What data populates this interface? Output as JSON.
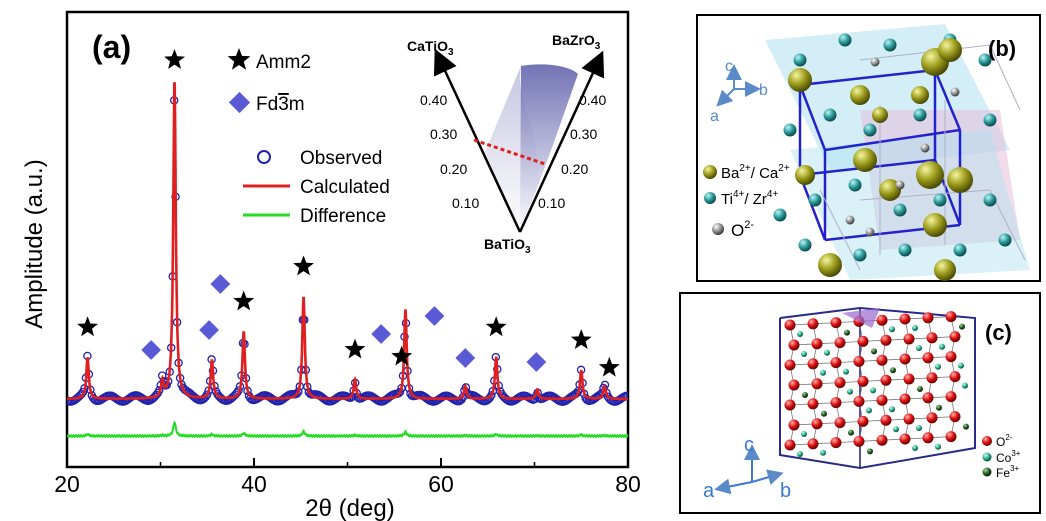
{
  "panel_a": {
    "label": "(a)",
    "legend": {
      "amm2": "Amm2",
      "fd3m_prefix": "Fd",
      "fd3m_bar": "3",
      "fd3m_suffix": "m",
      "observed": "Observed",
      "calculated": "Calculated",
      "difference": "Difference"
    },
    "inset": {
      "top_left": "CaTiO",
      "top_left_sub": "3",
      "top_right": "BaZrO",
      "top_right_sub": "3",
      "bottom": "BaTiO",
      "bottom_sub": "3",
      "left_ticks": [
        "0.40",
        "0.30",
        "0.20",
        "0.10"
      ],
      "right_ticks": [
        "0.40",
        "0.30",
        "0.20",
        "0.10"
      ]
    }
  },
  "chart_data": {
    "type": "line",
    "xlabel": "2θ (deg)",
    "ylabel": "Amplitude (a.u.)",
    "xlim": [
      20,
      80
    ],
    "x_ticks": [
      "20",
      "40",
      "60",
      "80"
    ],
    "series": [
      {
        "name": "Observed",
        "color": "#2222aa"
      },
      {
        "name": "Calculated",
        "color": "#e02020"
      },
      {
        "name": "Difference",
        "color": "#22dd22"
      }
    ],
    "peaks": [
      {
        "x": 22.2,
        "height": 0.13
      },
      {
        "x": 30.2,
        "height": 0.05
      },
      {
        "x": 31.5,
        "height": 1.0
      },
      {
        "x": 35.5,
        "height": 0.12
      },
      {
        "x": 38.9,
        "height": 0.21
      },
      {
        "x": 45.3,
        "height": 0.32
      },
      {
        "x": 50.8,
        "height": 0.06
      },
      {
        "x": 56.2,
        "height": 0.28
      },
      {
        "x": 62.6,
        "height": 0.04
      },
      {
        "x": 65.9,
        "height": 0.13
      },
      {
        "x": 70.3,
        "height": 0.03
      },
      {
        "x": 75.0,
        "height": 0.09
      },
      {
        "x": 77.5,
        "height": 0.04
      }
    ],
    "amm2_markers": [
      22.2,
      31.5,
      38.9,
      45.3,
      50.8,
      55.8,
      65.9,
      75.0,
      78.0
    ],
    "fd3m_markers": [
      29.0,
      35.2,
      36.4,
      53.6,
      59.3,
      62.6,
      70.2
    ]
  },
  "panel_b": {
    "label": "(b)",
    "axes": {
      "c": "c",
      "b": "b",
      "a": "a"
    },
    "legend": [
      {
        "text": "Ba",
        "sup": "2+",
        "text2": "/ Ca",
        "sup2": "2+",
        "color": "#8a8a10"
      },
      {
        "text": "Ti",
        "sup": "4+",
        "text2": "/ Zr",
        "sup2": "4+",
        "color": "#2a9a9a"
      },
      {
        "text": "O",
        "sup": "2-",
        "text2": "",
        "sup2": "",
        "color": "#8a8a8a"
      }
    ]
  },
  "panel_c": {
    "label": "(c)",
    "axes": {
      "c": "c",
      "b": "b",
      "a": "a"
    },
    "legend": [
      {
        "text": "O",
        "sup": "2-",
        "color": "#dd1111"
      },
      {
        "text": "Co",
        "sup": "3+",
        "color": "#22aa88"
      },
      {
        "text": "Fe",
        "sup": "3+",
        "color": "#225522"
      }
    ]
  }
}
